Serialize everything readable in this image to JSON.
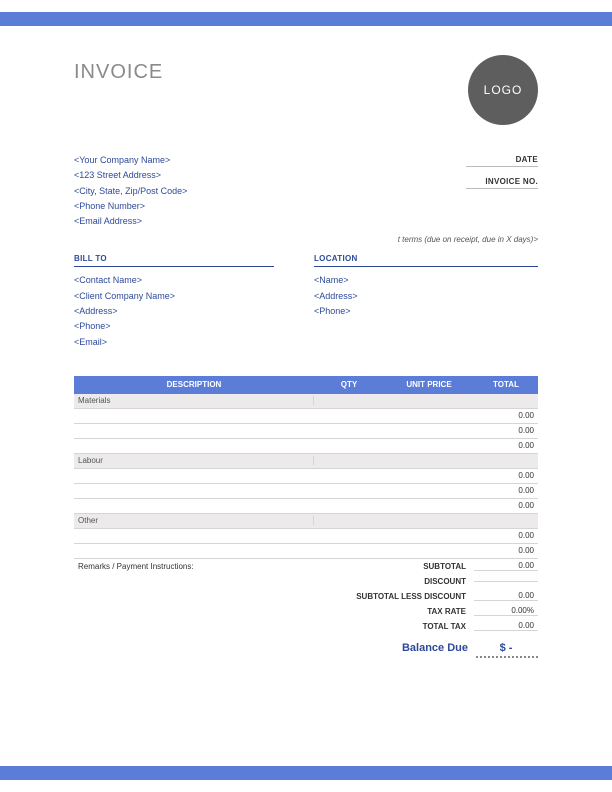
{
  "colors": {
    "accent": "#5b7dd8",
    "link": "#2e4a99",
    "logoBg": "#5e5e5e"
  },
  "header": {
    "title": "INVOICE",
    "logo": "LOGO"
  },
  "company": {
    "lines": [
      "<Your Company Name>",
      "<123 Street Address>",
      "<City, State, Zip/Post Code>",
      "<Phone Number>",
      "<Email Address>"
    ]
  },
  "meta": {
    "dateLabel": "DATE",
    "invoiceNoLabel": "INVOICE NO.",
    "termsNote": "t terms (due on receipt, due in X days)>"
  },
  "billTo": {
    "heading": "BILL TO",
    "lines": [
      "<Contact Name>",
      "<Client Company Name>",
      "<Address>",
      "<Phone>",
      "<Email>"
    ]
  },
  "location": {
    "heading": "LOCATION",
    "lines": [
      "<Name>",
      "<Address>",
      "<Phone>"
    ]
  },
  "table": {
    "headers": {
      "description": "DESCRIPTION",
      "qty": "QTY",
      "unitPrice": "UNIT PRICE",
      "total": "TOTAL"
    },
    "sections": [
      {
        "label": "Materials",
        "rows": [
          {
            "total": "0.00"
          },
          {
            "total": "0.00"
          },
          {
            "total": "0.00"
          }
        ]
      },
      {
        "label": "Labour",
        "rows": [
          {
            "total": "0.00"
          },
          {
            "total": "0.00"
          },
          {
            "total": "0.00"
          }
        ]
      },
      {
        "label": "Other",
        "rows": [
          {
            "total": "0.00"
          },
          {
            "total": "0.00"
          }
        ]
      }
    ]
  },
  "summary": {
    "remarksLabel": "Remarks / Payment Instructions:",
    "rows": [
      {
        "label": "SUBTOTAL",
        "value": "0.00"
      },
      {
        "label": "DISCOUNT",
        "value": ""
      },
      {
        "label": "SUBTOTAL LESS DISCOUNT",
        "value": "0.00"
      },
      {
        "label": "TAX RATE",
        "value": "0.00%"
      },
      {
        "label": "TOTAL TAX",
        "value": "0.00"
      }
    ],
    "balanceLabel": "Balance Due",
    "balanceValue": "$   -"
  }
}
